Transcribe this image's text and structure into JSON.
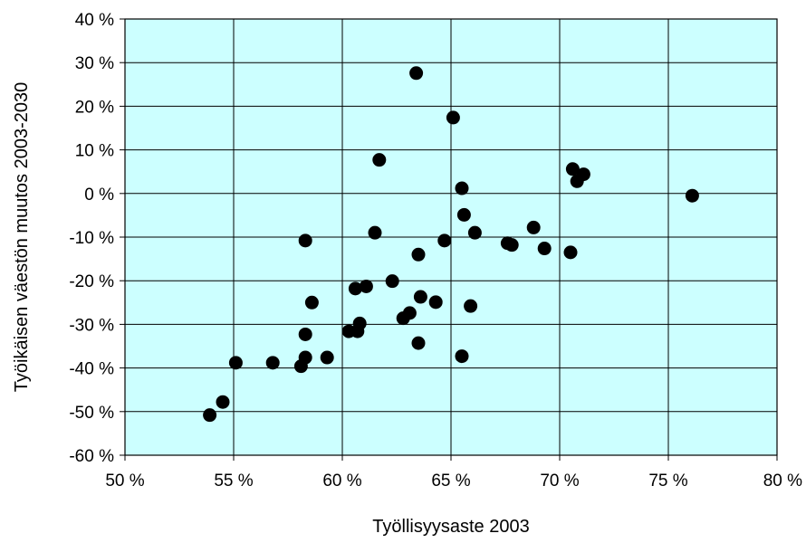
{
  "chart_data": {
    "type": "scatter",
    "xlabel": "Työllisyysaste 2003",
    "ylabel": "Työikäisen väestön muutos 2003-2030",
    "xlim": [
      50,
      80
    ],
    "ylim": [
      -60,
      40
    ],
    "x_ticks": [
      50,
      55,
      60,
      65,
      70,
      75,
      80
    ],
    "y_ticks": [
      40,
      30,
      20,
      10,
      0,
      -10,
      -20,
      -30,
      -40,
      -50,
      -60
    ],
    "x_tick_labels": [
      "50 %",
      "55 %",
      "60 %",
      "65 %",
      "70 %",
      "75 %",
      "80 %"
    ],
    "y_tick_labels": [
      "40 %",
      "30 %",
      "20 %",
      "10 %",
      "0 %",
      "-10 %",
      "-20 %",
      "-30 %",
      "-40 %",
      "-50 %",
      "-60 %"
    ],
    "grid": true,
    "plot_background": "#ccffff",
    "marker_color": "#000000",
    "points": [
      {
        "x": 53.9,
        "y": -50.8
      },
      {
        "x": 54.5,
        "y": -47.8
      },
      {
        "x": 55.1,
        "y": -38.8
      },
      {
        "x": 56.8,
        "y": -38.8
      },
      {
        "x": 58.1,
        "y": -39.6
      },
      {
        "x": 58.3,
        "y": -37.6
      },
      {
        "x": 58.3,
        "y": -32.3
      },
      {
        "x": 58.3,
        "y": -10.8
      },
      {
        "x": 58.6,
        "y": -25.0
      },
      {
        "x": 59.3,
        "y": -37.6
      },
      {
        "x": 60.3,
        "y": -31.6
      },
      {
        "x": 60.7,
        "y": -31.6
      },
      {
        "x": 60.8,
        "y": -29.8
      },
      {
        "x": 60.6,
        "y": -21.8
      },
      {
        "x": 61.1,
        "y": -21.3
      },
      {
        "x": 61.5,
        "y": -9.0
      },
      {
        "x": 61.7,
        "y": 7.7
      },
      {
        "x": 62.3,
        "y": -20.1
      },
      {
        "x": 62.8,
        "y": -28.6
      },
      {
        "x": 63.1,
        "y": -27.4
      },
      {
        "x": 63.4,
        "y": 27.6
      },
      {
        "x": 63.5,
        "y": -14.0
      },
      {
        "x": 63.5,
        "y": -34.3
      },
      {
        "x": 63.6,
        "y": -23.7
      },
      {
        "x": 64.3,
        "y": -24.9
      },
      {
        "x": 64.7,
        "y": -10.8
      },
      {
        "x": 65.1,
        "y": 17.4
      },
      {
        "x": 65.5,
        "y": 1.2
      },
      {
        "x": 65.5,
        "y": -37.3
      },
      {
        "x": 65.6,
        "y": -4.9
      },
      {
        "x": 65.9,
        "y": -25.8
      },
      {
        "x": 66.1,
        "y": -9.0
      },
      {
        "x": 67.6,
        "y": -11.4
      },
      {
        "x": 67.8,
        "y": -11.8
      },
      {
        "x": 68.8,
        "y": -7.8
      },
      {
        "x": 69.3,
        "y": -12.6
      },
      {
        "x": 70.5,
        "y": -13.5
      },
      {
        "x": 70.6,
        "y": 5.6
      },
      {
        "x": 70.8,
        "y": 2.8
      },
      {
        "x": 71.1,
        "y": 4.4
      },
      {
        "x": 76.1,
        "y": -0.5
      }
    ]
  }
}
